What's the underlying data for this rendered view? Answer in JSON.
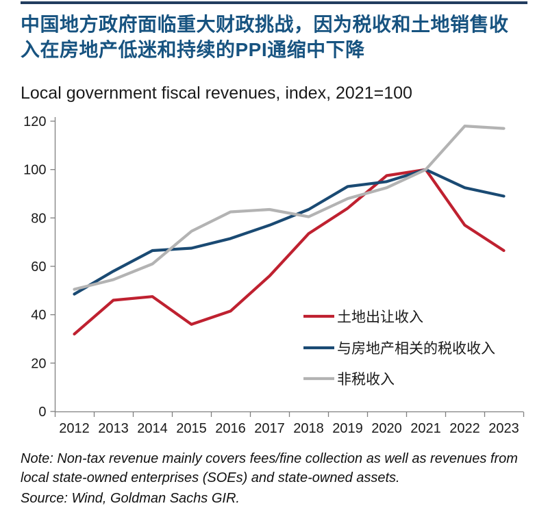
{
  "header": {
    "title": "中国地方政府面临重大财政挑战，因为税收和土地销售收入在房地产低迷和持续的PPI通缩中下降"
  },
  "chart_data": {
    "type": "line",
    "title": "Local government fiscal revenues, index, 2021=100",
    "x": [
      "2012",
      "2013",
      "2014",
      "2015",
      "2016",
      "2017",
      "2018",
      "2019",
      "2020",
      "2021",
      "2022",
      "2023"
    ],
    "xlabel": "",
    "ylabel": "",
    "ylim": [
      0,
      120
    ],
    "yticks": [
      0,
      20,
      40,
      60,
      80,
      100,
      120
    ],
    "grid": false,
    "legend_position": "inside lower right",
    "series": [
      {
        "name": "土地出让收入",
        "color": "#bf2130",
        "values": [
          32,
          46,
          47.5,
          36,
          41.5,
          56,
          73.5,
          84,
          97.5,
          100,
          77,
          66.5
        ]
      },
      {
        "name": "与房地产相关的税收收入",
        "color": "#1a4a73",
        "values": [
          48.5,
          58,
          66.5,
          67.5,
          71.5,
          77,
          83.5,
          93,
          95,
          100,
          92.5,
          89
        ]
      },
      {
        "name": "非税收入",
        "color": "#b3b3b3",
        "values": [
          50.5,
          54.5,
          61,
          74.5,
          82.5,
          83.5,
          80.5,
          88,
          92.5,
          100,
          118,
          117
        ]
      }
    ]
  },
  "footer": {
    "note": "Note: Non-tax revenue mainly covers fees/fine collection as well as revenues from local state-owned enterprises (SOEs) and state-owned assets.",
    "source": "Source: Wind, Goldman Sachs GIR."
  },
  "colors": {
    "title_text": "#175380",
    "top_rule": "#223d5f",
    "axis": "#7f7f7f",
    "tick_text": "#1a1a1a"
  }
}
